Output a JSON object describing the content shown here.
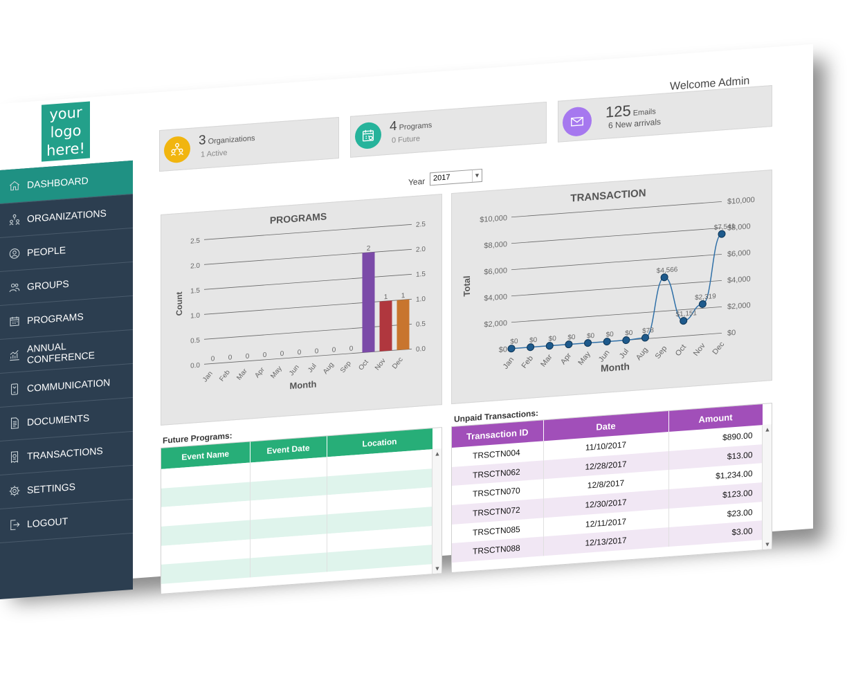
{
  "logo": {
    "text": [
      "your",
      "logo",
      "here!"
    ]
  },
  "header": {
    "welcome": "Welcome Admin"
  },
  "sidebar": {
    "items": [
      {
        "label": "DASHBOARD",
        "icon": "home-icon",
        "active": true
      },
      {
        "label": "ORGANIZATIONS",
        "icon": "organization-icon"
      },
      {
        "label": "PEOPLE",
        "icon": "person-icon"
      },
      {
        "label": "GROUPS",
        "icon": "group-icon"
      },
      {
        "label": "PROGRAMS",
        "icon": "calendar-icon"
      },
      {
        "label": "ANNUAL CONFERENCE",
        "icon": "chart-icon"
      },
      {
        "label": "COMMUNICATION",
        "icon": "phone-icon"
      },
      {
        "label": "DOCUMENTS",
        "icon": "document-icon"
      },
      {
        "label": "TRANSACTIONS",
        "icon": "receipt-icon"
      },
      {
        "label": "SETTINGS",
        "icon": "gear-icon"
      },
      {
        "label": "LOGOUT",
        "icon": "logout-icon"
      }
    ]
  },
  "stats": [
    {
      "number": "3",
      "label": "Organizations",
      "sub": "1 Active",
      "color": "#f1b50f",
      "icon": "organization-icon"
    },
    {
      "number": "4",
      "label": "Programs",
      "sub": "0 Future",
      "color": "#26b39b",
      "icon": "calendar-icon"
    },
    {
      "number": "125",
      "label": "Emails",
      "sub": "6 New arrivals",
      "color": "#a678ef",
      "icon": "mail-icon"
    }
  ],
  "year_filter": {
    "label": "Year",
    "value": "2017"
  },
  "chart_data": [
    {
      "type": "bar",
      "title": "PROGRAMS",
      "xlabel": "Month",
      "ylabel": "Count",
      "categories": [
        "Jan",
        "Feb",
        "Mar",
        "Apr",
        "May",
        "Jun",
        "Jul",
        "Aug",
        "Sep",
        "Oct",
        "Nov",
        "Dec"
      ],
      "values": [
        0,
        0,
        0,
        0,
        0,
        0,
        0,
        0,
        0,
        2,
        1,
        1
      ],
      "ylim": [
        0,
        2.5
      ],
      "yticks": [
        "0.0",
        "0.5",
        "1.0",
        "1.5",
        "2.0",
        "2.5"
      ],
      "bar_colors": {
        "Oct": "#7b4aa8",
        "Nov": "#b0373e",
        "Dec": "#c8752e"
      },
      "grid": true
    },
    {
      "type": "line",
      "title": "TRANSACTION",
      "xlabel": "Month",
      "ylabel": "Total",
      "categories": [
        "Jan",
        "Feb",
        "Mar",
        "Apr",
        "May",
        "Jun",
        "Jul",
        "Aug",
        "Sep",
        "Oct",
        "Nov",
        "Dec"
      ],
      "values": [
        0,
        0,
        0,
        0,
        0,
        0,
        0,
        78,
        4566,
        1151,
        2319,
        7541
      ],
      "data_labels": [
        "$0",
        "$0",
        "$0",
        "$0",
        "$0",
        "$0",
        "$0",
        "$78",
        "$4,566",
        "$1,151",
        "$2,319",
        "$7,541"
      ],
      "ylim": [
        0,
        10000
      ],
      "yticks": [
        "$0",
        "$2,000",
        "$4,000",
        "$6,000",
        "$8,000",
        "$10,000"
      ],
      "line_color": "#2e6fa7",
      "grid": true
    }
  ],
  "future_programs": {
    "title": "Future Programs:",
    "columns": [
      "Event Name",
      "Event Date",
      "Location"
    ],
    "rows": [
      [
        "",
        "",
        ""
      ],
      [
        "",
        "",
        ""
      ],
      [
        "",
        "",
        ""
      ],
      [
        "",
        "",
        ""
      ],
      [
        "",
        "",
        ""
      ],
      [
        "",
        "",
        ""
      ]
    ]
  },
  "unpaid_transactions": {
    "title": "Unpaid Transactions:",
    "columns": [
      "Transaction ID",
      "Date",
      "Amount"
    ],
    "rows": [
      [
        "TRSCTN004",
        "11/10/2017",
        "$890.00"
      ],
      [
        "TRSCTN062",
        "12/28/2017",
        "$13.00"
      ],
      [
        "TRSCTN070",
        "12/8/2017",
        "$1,234.00"
      ],
      [
        "TRSCTN072",
        "12/30/2017",
        "$123.00"
      ],
      [
        "TRSCTN085",
        "12/11/2017",
        "$23.00"
      ],
      [
        "TRSCTN088",
        "12/13/2017",
        "$3.00"
      ]
    ]
  }
}
